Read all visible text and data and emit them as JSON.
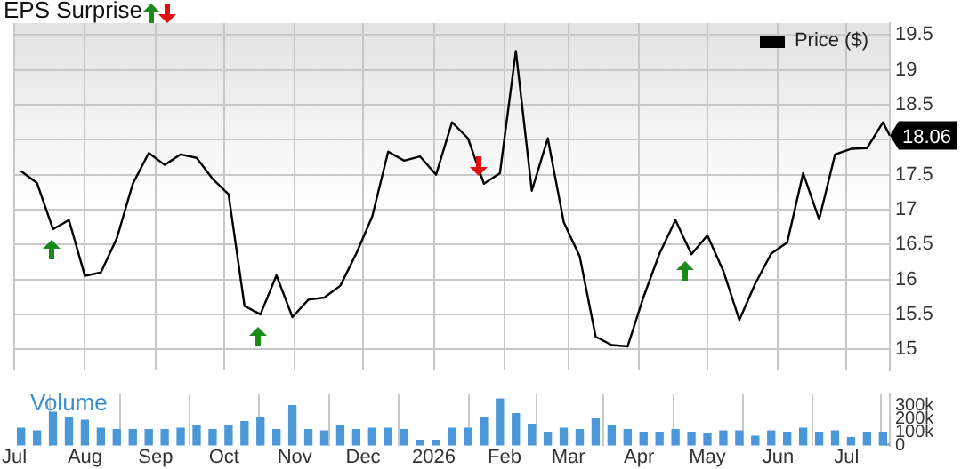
{
  "chart_data": [
    {
      "type": "line",
      "title": "EPS Surprise",
      "x": [
        "2025-07-04",
        "2025-07-11",
        "2025-07-18",
        "2025-07-25",
        "2025-08-01",
        "2025-08-08",
        "2025-08-15",
        "2025-08-22",
        "2025-08-29",
        "2025-09-05",
        "2025-09-12",
        "2025-09-19",
        "2025-09-26",
        "2025-10-03",
        "2025-10-10",
        "2025-10-17",
        "2025-10-24",
        "2025-10-31",
        "2025-11-07",
        "2025-11-14",
        "2025-11-21",
        "2025-11-28",
        "2025-12-05",
        "2025-12-12",
        "2025-12-19",
        "2025-12-26",
        "2026-01-02",
        "2026-01-09",
        "2026-01-16",
        "2026-01-23",
        "2026-01-30",
        "2026-02-06",
        "2026-02-13",
        "2026-02-20",
        "2026-02-27",
        "2026-03-06",
        "2026-03-13",
        "2026-03-20",
        "2026-03-27",
        "2026-04-03",
        "2026-04-10",
        "2026-04-17",
        "2026-04-24",
        "2026-05-01",
        "2026-05-08",
        "2026-05-15",
        "2026-05-22",
        "2026-05-29",
        "2026-06-05",
        "2026-06-12",
        "2026-06-19",
        "2026-06-26",
        "2026-07-03",
        "2026-07-10",
        "2026-07-17",
        "2026-07-20"
      ],
      "series": [
        {
          "name": "Price ($)",
          "color": "#000000",
          "values": [
            17.55,
            17.38,
            16.72,
            16.85,
            16.05,
            16.1,
            16.59,
            17.37,
            17.81,
            17.64,
            17.79,
            17.74,
            17.44,
            17.22,
            15.62,
            15.5,
            16.06,
            15.46,
            15.71,
            15.74,
            15.91,
            16.37,
            16.9,
            17.83,
            17.7,
            17.76,
            17.5,
            18.25,
            18.02,
            17.37,
            17.52,
            19.27,
            17.27,
            18.02,
            16.82,
            16.33,
            15.18,
            15.06,
            15.04,
            15.75,
            16.37,
            16.85,
            16.36,
            16.63,
            16.12,
            15.42,
            15.94,
            16.37,
            16.53,
            17.52,
            16.86,
            17.79,
            17.87,
            17.88,
            18.25,
            18.06
          ]
        }
      ],
      "xlim": [
        "2025-07-01",
        "2026-07-20"
      ],
      "xticks": [
        {
          "value": "2025-07-01",
          "label": null
        },
        {
          "value": "2025-08-01",
          "label": null
        },
        {
          "value": "2025-09-01",
          "label": null
        },
        {
          "value": "2025-10-01",
          "label": null
        },
        {
          "value": "2025-11-01",
          "label": null
        },
        {
          "value": "2025-12-01",
          "label": null
        },
        {
          "value": "2026-01-01",
          "label": null
        },
        {
          "value": "2026-02-01",
          "label": null
        },
        {
          "value": "2026-03-01",
          "label": null
        },
        {
          "value": "2026-04-01",
          "label": null
        },
        {
          "value": "2026-05-01",
          "label": null
        },
        {
          "value": "2026-06-01",
          "label": null
        },
        {
          "value": "2026-07-01",
          "label": null
        }
      ],
      "ylim": [
        14.7,
        19.67
      ],
      "yticks": [
        15,
        15.5,
        16,
        16.5,
        17,
        17.5,
        {
          "value": 18,
          "label": null
        },
        18.5,
        19,
        19.5
      ],
      "grid": true,
      "legend": "top right",
      "tick_labels": "y",
      "marker": "none",
      "annotations": [
        {
          "text": "18.06",
          "x": "2026-07-20",
          "y": 18.06
        }
      ]
    },
    {
      "type": "bar",
      "title": "Volume",
      "color": "#4a98d8",
      "x": [
        "2025-07-04",
        "2025-07-11",
        "2025-07-18",
        "2025-07-25",
        "2025-08-01",
        "2025-08-08",
        "2025-08-15",
        "2025-08-22",
        "2025-08-29",
        "2025-09-05",
        "2025-09-12",
        "2025-09-19",
        "2025-09-26",
        "2025-10-03",
        "2025-10-10",
        "2025-10-17",
        "2025-10-24",
        "2025-10-31",
        "2025-11-07",
        "2025-11-14",
        "2025-11-21",
        "2025-11-28",
        "2025-12-05",
        "2025-12-12",
        "2025-12-19",
        "2025-12-26",
        "2026-01-02",
        "2026-01-09",
        "2026-01-16",
        "2026-01-23",
        "2026-01-30",
        "2026-02-06",
        "2026-02-13",
        "2026-02-20",
        "2026-02-27",
        "2026-03-06",
        "2026-03-13",
        "2026-03-20",
        "2026-03-27",
        "2026-04-03",
        "2026-04-10",
        "2026-04-17",
        "2026-04-24",
        "2026-05-01",
        "2026-05-08",
        "2026-05-15",
        "2026-05-22",
        "2026-05-29",
        "2026-06-05",
        "2026-06-12",
        "2026-06-19",
        "2026-06-26",
        "2026-07-03",
        "2026-07-10",
        "2026-07-17",
        "2026-07-20"
      ],
      "values": [
        130000,
        110000,
        250000,
        210000,
        190000,
        130000,
        120000,
        120000,
        120000,
        120000,
        130000,
        150000,
        120000,
        150000,
        180000,
        210000,
        120000,
        300000,
        120000,
        110000,
        150000,
        120000,
        130000,
        130000,
        120000,
        40000,
        40000,
        130000,
        130000,
        210000,
        350000,
        240000,
        160000,
        100000,
        130000,
        120000,
        200000,
        150000,
        120000,
        100000,
        100000,
        120000,
        100000,
        90000,
        110000,
        110000,
        70000,
        110000,
        100000,
        130000,
        100000,
        110000,
        60000,
        100000,
        100000,
        10000
      ],
      "xlim": [
        "2025-07-01",
        "2026-07-20"
      ],
      "xticks": [
        {
          "value": "2025-07-01",
          "label": "Jul"
        },
        {
          "value": "2025-08-01",
          "label": "Aug"
        },
        {
          "value": "2025-09-01",
          "label": "Sep"
        },
        {
          "value": "2025-10-01",
          "label": "Oct"
        },
        {
          "value": "2025-11-01",
          "label": "Nov"
        },
        {
          "value": "2025-12-01",
          "label": "Dec"
        },
        {
          "value": "2026-01-01",
          "label": "2026"
        },
        {
          "value": "2026-02-01",
          "label": "Feb"
        },
        {
          "value": "2026-03-01",
          "label": "Mar"
        },
        {
          "value": "2026-04-01",
          "label": "Apr"
        },
        {
          "value": "2026-05-01",
          "label": "May"
        },
        {
          "value": "2026-06-01",
          "label": "Jun"
        },
        {
          "value": "2026-07-01",
          "label": "Jul"
        }
      ],
      "ylim": [
        0,
        385000
      ],
      "yticks": [
        0,
        {
          "value": 100000,
          "label": "100k"
        },
        {
          "value": 200000,
          "label": "200k"
        },
        {
          "value": 300000,
          "label": "300k"
        }
      ],
      "grid": "x"
    }
  ]
}
